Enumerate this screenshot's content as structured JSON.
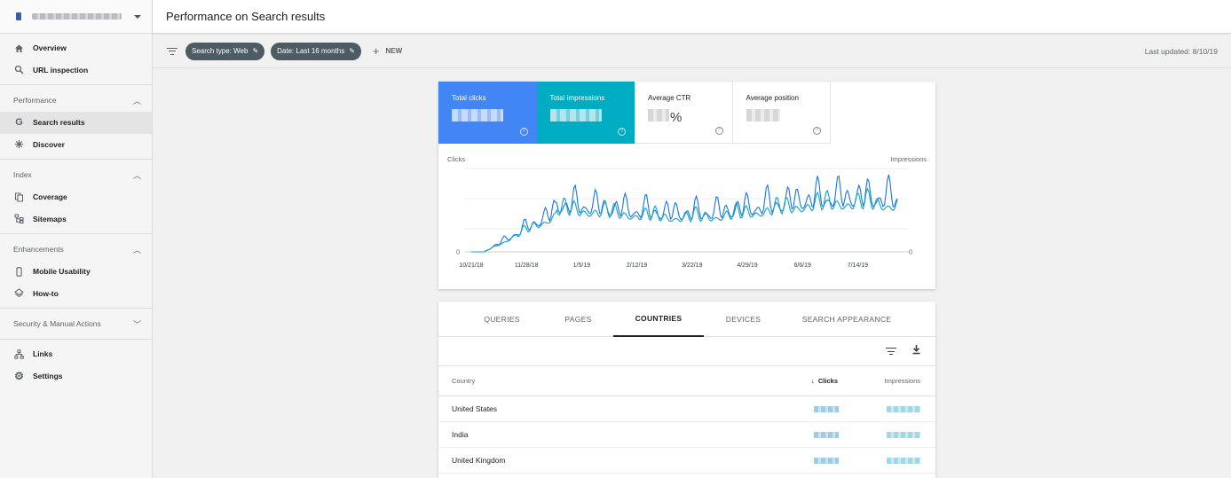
{
  "header": {
    "title": "Performance on Search results"
  },
  "filters": {
    "chips": [
      {
        "label": "Search type: Web"
      },
      {
        "label": "Date: Last 16 months"
      }
    ],
    "new_label": "NEW",
    "last_updated": "Last updated: 8/10/19"
  },
  "sidebar": {
    "top_items": [
      {
        "label": "Overview",
        "icon": "home-icon"
      },
      {
        "label": "URL inspection",
        "icon": "search-icon"
      }
    ],
    "sections": [
      {
        "title": "Performance",
        "expanded": true,
        "items": [
          {
            "label": "Search results",
            "icon": "google-g-icon",
            "active": true
          },
          {
            "label": "Discover",
            "icon": "asterisk-icon"
          }
        ]
      },
      {
        "title": "Index",
        "expanded": true,
        "items": [
          {
            "label": "Coverage",
            "icon": "copy-icon"
          },
          {
            "label": "Sitemaps",
            "icon": "sitemap-icon"
          }
        ]
      },
      {
        "title": "Enhancements",
        "expanded": true,
        "items": [
          {
            "label": "Mobile Usability",
            "icon": "phone-icon"
          },
          {
            "label": "How-to",
            "icon": "layers-icon"
          }
        ]
      },
      {
        "title": "Security & Manual Actions",
        "expanded": false,
        "items": []
      }
    ],
    "bottom_items": [
      {
        "label": "Links",
        "icon": "network-icon"
      },
      {
        "label": "Settings",
        "icon": "gear-icon"
      }
    ]
  },
  "metrics": [
    {
      "label": "Total clicks",
      "selected": true,
      "color": "#4285f4"
    },
    {
      "label": "Total impressions",
      "selected": true,
      "color": "#00acc1"
    },
    {
      "label": "Average CTR",
      "selected": false,
      "suffix": "%"
    },
    {
      "label": "Average position",
      "selected": false
    }
  ],
  "chart_data": {
    "type": "line",
    "ylabel_left": "Clicks",
    "ylabel_right": "Impressions",
    "y_zero_label": "0",
    "x_ticks": [
      "10/21/18",
      "11/28/18",
      "1/5/19",
      "2/12/19",
      "3/22/19",
      "4/29/19",
      "6/6/19",
      "7/14/19"
    ],
    "series": [
      {
        "name": "Clicks",
        "color": "#1a73e8"
      },
      {
        "name": "Impressions",
        "color": "#12a4b8"
      }
    ]
  },
  "tabs": [
    {
      "label": "QUERIES",
      "active": false
    },
    {
      "label": "PAGES",
      "active": false
    },
    {
      "label": "COUNTRIES",
      "active": true
    },
    {
      "label": "DEVICES",
      "active": false
    },
    {
      "label": "SEARCH APPEARANCE",
      "active": false
    }
  ],
  "table": {
    "columns": {
      "country": "Country",
      "clicks": "Clicks",
      "impressions": "Impressions",
      "sort_arrow": "↓"
    },
    "rows": [
      {
        "country": "United States"
      },
      {
        "country": "India"
      },
      {
        "country": "United Kingdom"
      }
    ]
  }
}
